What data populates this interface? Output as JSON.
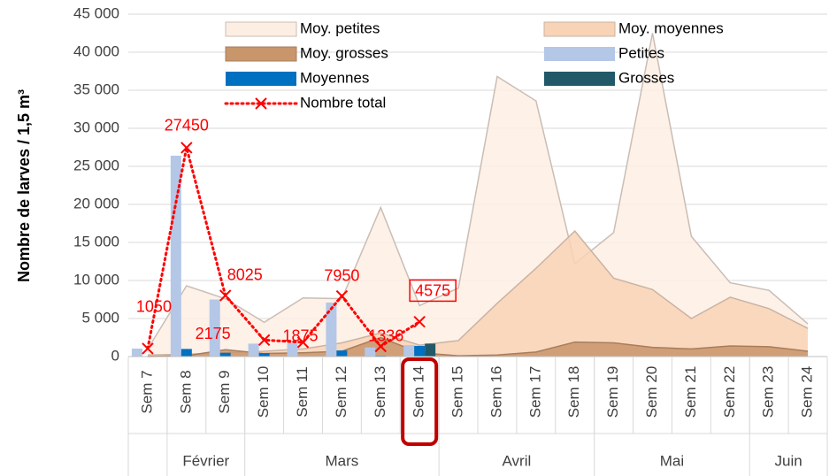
{
  "chart_data": {
    "type": "combo",
    "y_label": "Nombre de larves / 1,5 m³",
    "categories": [
      "Sem 7",
      "Sem 8",
      "Sem 9",
      "Sem 10",
      "Sem 11",
      "Sem 12",
      "Sem 13",
      "Sem 14",
      "Sem 15",
      "Sem 16",
      "Sem 17",
      "Sem 18",
      "Sem 19",
      "Sem 20",
      "Sem 21",
      "Sem 22",
      "Sem 23",
      "Sem 24"
    ],
    "months": [
      {
        "label": null,
        "span": 1
      },
      {
        "label": "Février",
        "span": 2
      },
      {
        "label": "Mars",
        "span": 5
      },
      {
        "label": "Avril",
        "span": 4
      },
      {
        "label": "Mai",
        "span": 4
      },
      {
        "label": "Juin",
        "span": 2
      }
    ],
    "highlight_index": 7,
    "ylim": [
      0,
      45000
    ],
    "yticks": [
      0,
      {
        "value": 5000,
        "label": "5 000"
      },
      {
        "value": 10000,
        "label": "10 000"
      },
      {
        "value": 15000,
        "label": "15 000"
      },
      {
        "value": 20000,
        "label": "20 000"
      },
      {
        "value": 25000,
        "label": "25 000"
      },
      {
        "value": 30000,
        "label": "30 000"
      },
      {
        "value": 35000,
        "label": "35 000"
      },
      {
        "value": 40000,
        "label": "40 000"
      },
      {
        "value": 45000,
        "label": "45 000"
      }
    ],
    "grid": true,
    "series": [
      {
        "name": "Moy. petites",
        "type": "area",
        "color": "#fdeee4",
        "edge": "#c9bdb5",
        "values": [
          1000,
          9300,
          7600,
          4500,
          7700,
          7600,
          19600,
          6700,
          9000,
          36800,
          33600,
          12200,
          16300,
          42500,
          15800,
          9700,
          8700,
          4300
        ]
      },
      {
        "name": "Moy. moyennes",
        "type": "area",
        "color": "#f9d3b6",
        "edge": "#c9b3a3",
        "values": [
          200,
          300,
          500,
          700,
          1000,
          1800,
          3100,
          1500,
          2100,
          7000,
          11600,
          16500,
          10300,
          8800,
          5000,
          7800,
          6300,
          3700
        ]
      },
      {
        "name": "Moy. grosses",
        "type": "area",
        "color": "#c9956b",
        "edge": "#a87d5c",
        "values": [
          0,
          100,
          900,
          400,
          500,
          700,
          2500,
          500,
          100,
          200,
          600,
          1900,
          1800,
          1200,
          1000,
          1400,
          1300,
          700
        ]
      },
      {
        "name": "Petites",
        "type": "bar",
        "color": "#b4c7e7",
        "values": [
          1050,
          26400,
          7500,
          1700,
          1800,
          7100,
          1200,
          1500,
          null,
          null,
          null,
          null,
          null,
          null,
          null,
          null,
          null,
          null
        ]
      },
      {
        "name": "Moyennes",
        "type": "bar",
        "color": "#0070c0",
        "values": [
          0,
          1000,
          500,
          450,
          0,
          800,
          100,
          1400,
          null,
          null,
          null,
          null,
          null,
          null,
          null,
          null,
          null,
          null
        ]
      },
      {
        "name": "Grosses",
        "type": "bar",
        "color": "#215968",
        "values": [
          0,
          0,
          0,
          0,
          0,
          0,
          0,
          1700,
          null,
          null,
          null,
          null,
          null,
          null,
          null,
          null,
          null,
          null
        ]
      },
      {
        "name": "Nombre total",
        "type": "line",
        "color": "#ff0000",
        "values": [
          1050,
          27450,
          8025,
          2175,
          1875,
          7950,
          1336,
          4575,
          null,
          null,
          null,
          null,
          null,
          null,
          null,
          null,
          null,
          null
        ]
      }
    ]
  }
}
